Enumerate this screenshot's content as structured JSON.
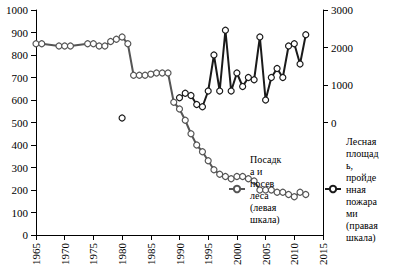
{
  "chart_data": {
    "type": "line",
    "xlim": [
      1965,
      2015
    ],
    "xticks": [
      1965,
      1970,
      1975,
      1980,
      1985,
      1990,
      1995,
      2000,
      2005,
      2010,
      2015
    ],
    "ylim": [
      0,
      1000
    ],
    "yticks": [
      0,
      100,
      200,
      300,
      400,
      500,
      600,
      700,
      800,
      900,
      1000
    ],
    "y2lim": [
      -3000,
      3000
    ],
    "y2ticks": [
      0,
      1000,
      2000,
      3000
    ],
    "grid": false,
    "legend": "right",
    "series": [
      {
        "name": "Посадка и посев леса (левая шкала)",
        "color": "#555555",
        "marker": "circle",
        "line_style": "solid",
        "x": [
          1965,
          1966,
          1969,
          1970,
          1971,
          1974,
          1975,
          1976,
          1977,
          1978,
          1979,
          1980,
          1981,
          1982,
          1983,
          1984,
          1985,
          1986,
          1987,
          1988,
          1989,
          1990,
          1991,
          1992,
          1993,
          1994,
          1995,
          1996,
          1997,
          1998,
          1999,
          2000,
          2001,
          2002,
          2003,
          2004,
          2005,
          2006,
          2007,
          2008,
          2009,
          2010,
          2011,
          2012
        ],
        "values": [
          850,
          850,
          840,
          840,
          840,
          850,
          850,
          840,
          840,
          860,
          870,
          880,
          850,
          710,
          710,
          710,
          715,
          720,
          720,
          720,
          590,
          560,
          510,
          450,
          400,
          370,
          330,
          290,
          270,
          260,
          250,
          260,
          260,
          250,
          240,
          200,
          200,
          200,
          190,
          190,
          180,
          170,
          190,
          180
        ]
      },
      {
        "name": "Лесная площадь, пройденная пожарами (правая шкала)",
        "color": "#1a1a1a",
        "marker": "circle",
        "line_style": "solid",
        "axis": "y2",
        "x": [
          1980,
          1985,
          1990,
          1991,
          1992,
          1993,
          1994,
          1995,
          1996,
          1997,
          1998,
          1999,
          2000,
          2001,
          2002,
          2003,
          2004,
          2005,
          2006,
          2007,
          2008,
          2009,
          2010,
          2011,
          2012
        ],
        "values": [
          120,
          null,
          660,
          780,
          720,
          480,
          420,
          840,
          1800,
          840,
          2460,
          840,
          1320,
          960,
          1200,
          1140,
          2280,
          600,
          1200,
          1440,
          1200,
          2040,
          2100,
          1560,
          2340
        ]
      }
    ]
  }
}
